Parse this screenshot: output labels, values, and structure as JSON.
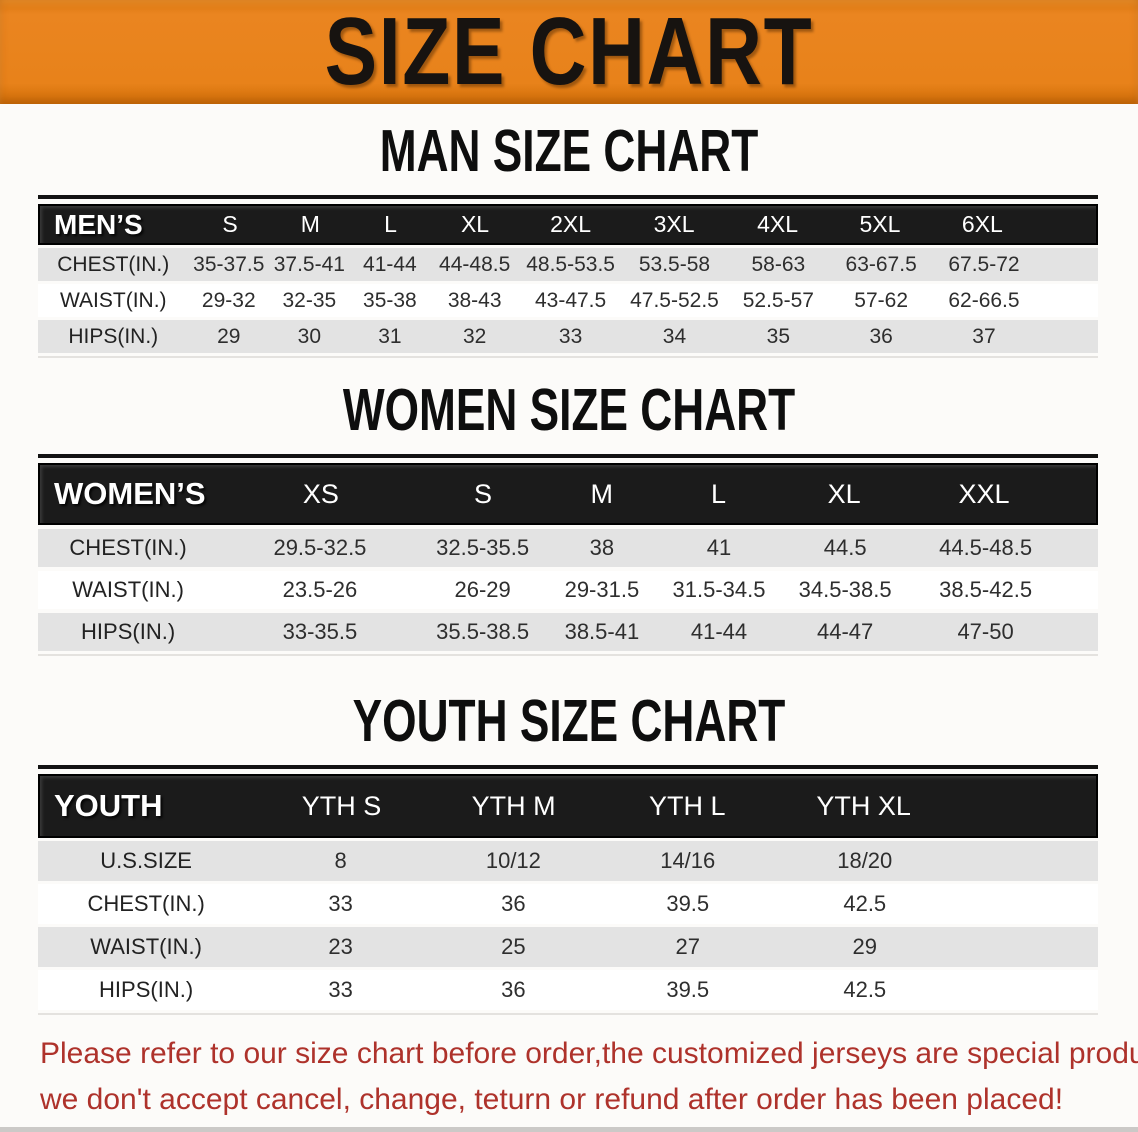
{
  "banner": {
    "title": "SIZE CHART"
  },
  "colors": {
    "banner_bg": "#E8821A",
    "table_header_bg": "#1B1B1B",
    "row_stripe": "#E3E3E3",
    "footer_text": "#AE322B"
  },
  "sections": [
    {
      "title": "MAN SIZE CHART",
      "header_label": "MEN’S",
      "columns": [
        "S",
        "M",
        "L",
        "XL",
        "2XL",
        "3XL",
        "4XL",
        "5XL",
        "6XL"
      ],
      "rows": [
        {
          "label": "CHEST(IN.)",
          "values": [
            "35-37.5",
            "37.5-41",
            "41-44",
            "44-48.5",
            "48.5-53.5",
            "53.5-58",
            "58-63",
            "63-67.5",
            "67.5-72"
          ]
        },
        {
          "label": "WAIST(IN.)",
          "values": [
            "29-32",
            "32-35",
            "35-38",
            "38-43",
            "43-47.5",
            "47.5-52.5",
            "52.5-57",
            "57-62",
            "62-66.5"
          ]
        },
        {
          "label": "HIPS(IN.)",
          "values": [
            "29",
            "30",
            "31",
            "32",
            "33",
            "34",
            "35",
            "36",
            "37"
          ]
        }
      ]
    },
    {
      "title": "WOMEN SIZE CHART",
      "header_label": "WOMEN’S",
      "columns": [
        "XS",
        "S",
        "M",
        "L",
        "XL",
        "XXL"
      ],
      "rows": [
        {
          "label": "CHEST(IN.)",
          "values": [
            "29.5-32.5",
            "32.5-35.5",
            "38",
            "41",
            "44.5",
            "44.5-48.5"
          ]
        },
        {
          "label": "WAIST(IN.)",
          "values": [
            "23.5-26",
            "26-29",
            "29-31.5",
            "31.5-34.5",
            "34.5-38.5",
            "38.5-42.5"
          ]
        },
        {
          "label": "HIPS(IN.)",
          "values": [
            "33-35.5",
            "35.5-38.5",
            "38.5-41",
            "41-44",
            "44-47",
            "47-50"
          ]
        }
      ]
    },
    {
      "title": "YOUTH SIZE CHART",
      "header_label": "YOUTH",
      "columns": [
        "YTH S",
        "YTH M",
        "YTH L",
        "YTH XL"
      ],
      "rows": [
        {
          "label": "U.S.SIZE",
          "values": [
            "8",
            "10/12",
            "14/16",
            "18/20"
          ]
        },
        {
          "label": "CHEST(IN.)",
          "values": [
            "33",
            "36",
            "39.5",
            "42.5"
          ]
        },
        {
          "label": "WAIST(IN.)",
          "values": [
            "23",
            "25",
            "27",
            "29"
          ]
        },
        {
          "label": "HIPS(IN.)",
          "values": [
            "33",
            "36",
            "39.5",
            "42.5"
          ]
        }
      ]
    }
  ],
  "footer": {
    "line1": "Please refer to our size chart before order,the customized jerseys are special products,",
    "line2": "we don't accept cancel, change, teturn or refund after order has been placed!"
  },
  "chart_data": [
    {
      "type": "table",
      "title": "MAN SIZE CHART",
      "columns": [
        "MEN’S",
        "S",
        "M",
        "L",
        "XL",
        "2XL",
        "3XL",
        "4XL",
        "5XL",
        "6XL"
      ],
      "rows": [
        [
          "CHEST(IN.)",
          "35-37.5",
          "37.5-41",
          "41-44",
          "44-48.5",
          "48.5-53.5",
          "53.5-58",
          "58-63",
          "63-67.5",
          "67.5-72"
        ],
        [
          "WAIST(IN.)",
          "29-32",
          "32-35",
          "35-38",
          "38-43",
          "43-47.5",
          "47.5-52.5",
          "52.5-57",
          "57-62",
          "62-66.5"
        ],
        [
          "HIPS(IN.)",
          "29",
          "30",
          "31",
          "32",
          "33",
          "34",
          "35",
          "36",
          "37"
        ]
      ]
    },
    {
      "type": "table",
      "title": "WOMEN SIZE CHART",
      "columns": [
        "WOMEN’S",
        "XS",
        "S",
        "M",
        "L",
        "XL",
        "XXL"
      ],
      "rows": [
        [
          "CHEST(IN.)",
          "29.5-32.5",
          "32.5-35.5",
          "38",
          "41",
          "44.5",
          "44.5-48.5"
        ],
        [
          "WAIST(IN.)",
          "23.5-26",
          "26-29",
          "29-31.5",
          "31.5-34.5",
          "34.5-38.5",
          "38.5-42.5"
        ],
        [
          "HIPS(IN.)",
          "33-35.5",
          "35.5-38.5",
          "38.5-41",
          "41-44",
          "44-47",
          "47-50"
        ]
      ]
    },
    {
      "type": "table",
      "title": "YOUTH SIZE CHART",
      "columns": [
        "YOUTH",
        "YTH S",
        "YTH M",
        "YTH L",
        "YTH XL"
      ],
      "rows": [
        [
          "U.S.SIZE",
          "8",
          "10/12",
          "14/16",
          "18/20"
        ],
        [
          "CHEST(IN.)",
          "33",
          "36",
          "39.5",
          "42.5"
        ],
        [
          "WAIST(IN.)",
          "23",
          "25",
          "27",
          "29"
        ],
        [
          "HIPS(IN.)",
          "33",
          "36",
          "39.5",
          "42.5"
        ]
      ]
    }
  ]
}
